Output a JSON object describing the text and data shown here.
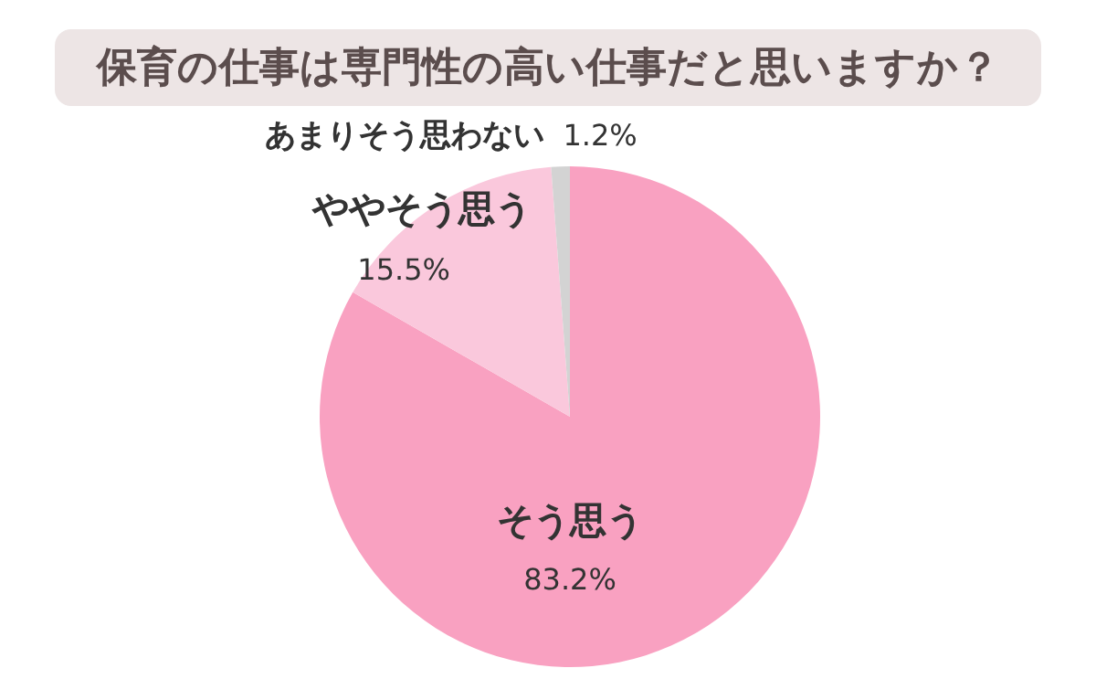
{
  "chart_data": {
    "type": "pie",
    "title": "保育の仕事は専門性の高い仕事だと思いますか？",
    "categories": [
      "そう思う",
      "ややそう思う",
      "あまりそう思わない"
    ],
    "values": [
      83.2,
      15.5,
      1.2
    ],
    "colors": [
      "#f9a1c1",
      "#fac8dc",
      "#d3d3d3"
    ],
    "value_labels": [
      "83.2%",
      "15.5%",
      "1.2%"
    ]
  }
}
